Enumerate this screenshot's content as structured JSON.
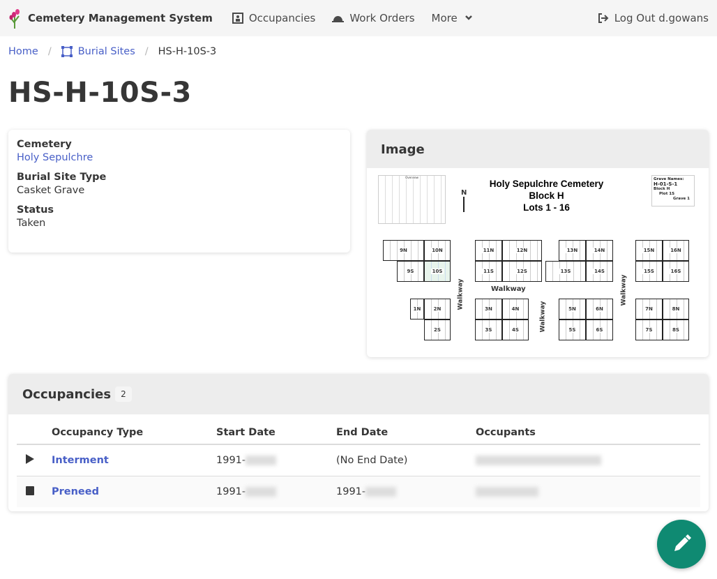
{
  "nav": {
    "brand": "Cemetery Management System",
    "occupancies": "Occupancies",
    "work_orders": "Work Orders",
    "more": "More",
    "logout": "Log Out d.gowans"
  },
  "breadcrumb": {
    "home": "Home",
    "burial_sites": "Burial Sites",
    "current": "HS-H-10S-3"
  },
  "title": "HS-H-10S-3",
  "details": {
    "cemetery_label": "Cemetery",
    "cemetery": "Holy Sepulchre",
    "type_label": "Burial Site Type",
    "type": "Casket Grave",
    "status_label": "Status",
    "status": "Taken"
  },
  "image": {
    "heading": "Image",
    "map_title": [
      "Holy Sepulchre Cemetery",
      "Block H",
      "Lots 1 - 16"
    ],
    "north": "N",
    "overview": "Overview",
    "legend": [
      "Grave Names:",
      "H-01-S-1",
      "Block H",
      "Plot 1S",
      "Grave 1"
    ],
    "walkway": "Walkway",
    "highlight_color": "#e8f4ec",
    "lots": [
      "9N",
      "10N",
      "9S",
      "10S",
      "11N",
      "12N",
      "11S",
      "12S",
      "13N",
      "14N",
      "13S",
      "14S",
      "15N",
      "16N",
      "15S",
      "16S",
      "1N",
      "2N",
      "2S",
      "3N",
      "4N",
      "3S",
      "4S",
      "5N",
      "6N",
      "5S",
      "6S",
      "7N",
      "8N",
      "7S",
      "8S"
    ],
    "highlighted": "10S"
  },
  "occupancies": {
    "heading": "Occupancies",
    "count": "2",
    "columns": [
      "Occupancy Type",
      "Start Date",
      "End Date",
      "Occupants"
    ],
    "rows": [
      {
        "icon": "play",
        "type": "Interment",
        "start": "1991-",
        "end": "(No End Date)"
      },
      {
        "icon": "stop",
        "type": "Preneed",
        "start": "1991-",
        "end": "1991-"
      }
    ]
  },
  "colors": {
    "link": "#485fc7",
    "fab": "#0f8a72"
  }
}
